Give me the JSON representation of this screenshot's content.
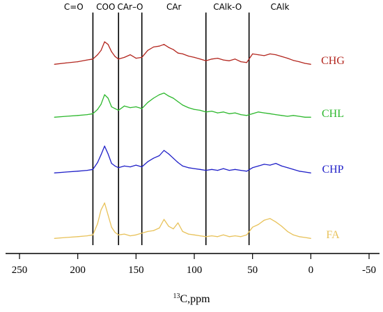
{
  "chart_data": {
    "type": "line",
    "title": "",
    "xlabel_sup": "13",
    "xlabel_main": "C,ppm",
    "xlim": [
      250,
      -50
    ],
    "x_reversed": true,
    "x_ticks": [
      250,
      200,
      150,
      100,
      50,
      0,
      -50
    ],
    "x_tick_labels": [
      "250",
      "200",
      "150",
      "100",
      "50",
      "0",
      "-50"
    ],
    "grid": false,
    "regions": [
      {
        "label": "C=O",
        "from": 220,
        "to": 187
      },
      {
        "label": "COO",
        "from": 187,
        "to": 165
      },
      {
        "label": "CAr–O",
        "from": 165,
        "to": 145
      },
      {
        "label": "CAr",
        "from": 145,
        "to": 90
      },
      {
        "label": "CAlk-O",
        "from": 90,
        "to": 53
      },
      {
        "label": "CAlk",
        "from": 53,
        "to": 0
      }
    ],
    "boundaries": [
      187,
      165,
      145,
      90,
      53
    ],
    "series": [
      {
        "name": "CHG",
        "color": "#b3261e",
        "x": [
          220,
          210,
          200,
          192,
          187,
          183,
          180,
          177,
          174,
          171,
          168,
          165,
          160,
          155,
          150,
          145,
          140,
          135,
          130,
          126,
          122,
          118,
          114,
          110,
          105,
          100,
          95,
          90,
          85,
          80,
          75,
          70,
          65,
          60,
          55,
          50,
          45,
          40,
          35,
          30,
          25,
          20,
          15,
          10,
          5,
          0
        ],
        "y": [
          6,
          9,
          12,
          16,
          18,
          28,
          38,
          58,
          52,
          35,
          24,
          18,
          22,
          28,
          20,
          22,
          38,
          46,
          48,
          52,
          45,
          40,
          32,
          30,
          25,
          22,
          18,
          14,
          18,
          20,
          16,
          14,
          18,
          12,
          10,
          30,
          28,
          26,
          30,
          28,
          24,
          20,
          15,
          12,
          8,
          6
        ]
      },
      {
        "name": "CHL",
        "color": "#2db82d",
        "x": [
          220,
          210,
          200,
          192,
          187,
          183,
          180,
          177,
          174,
          171,
          168,
          165,
          160,
          155,
          150,
          145,
          140,
          135,
          130,
          126,
          122,
          118,
          114,
          110,
          105,
          100,
          95,
          90,
          85,
          80,
          75,
          70,
          65,
          60,
          55,
          50,
          45,
          40,
          35,
          30,
          25,
          20,
          15,
          10,
          5,
          0
        ],
        "y": [
          6,
          8,
          10,
          12,
          14,
          24,
          36,
          58,
          50,
          30,
          26,
          22,
          32,
          28,
          30,
          26,
          40,
          50,
          58,
          62,
          55,
          50,
          42,
          34,
          28,
          24,
          22,
          18,
          20,
          16,
          18,
          14,
          16,
          12,
          10,
          14,
          18,
          16,
          14,
          12,
          10,
          8,
          10,
          8,
          6,
          6
        ]
      },
      {
        "name": "CHP",
        "color": "#1f1fc8",
        "x": [
          220,
          210,
          200,
          192,
          187,
          183,
          180,
          177,
          174,
          171,
          168,
          165,
          160,
          155,
          150,
          145,
          140,
          135,
          130,
          126,
          122,
          118,
          114,
          110,
          105,
          100,
          95,
          90,
          85,
          80,
          75,
          70,
          65,
          60,
          55,
          50,
          45,
          40,
          35,
          30,
          25,
          20,
          15,
          10,
          5,
          0
        ],
        "y": [
          6,
          8,
          10,
          12,
          14,
          30,
          48,
          68,
          50,
          28,
          22,
          18,
          22,
          20,
          24,
          20,
          32,
          40,
          46,
          58,
          50,
          40,
          30,
          22,
          18,
          16,
          14,
          12,
          14,
          12,
          16,
          12,
          14,
          12,
          10,
          18,
          22,
          26,
          24,
          28,
          22,
          18,
          14,
          10,
          8,
          6
        ]
      },
      {
        "name": "FA",
        "color": "#e8c25a",
        "x": [
          220,
          210,
          200,
          192,
          187,
          183,
          180,
          177,
          174,
          171,
          168,
          165,
          160,
          155,
          150,
          145,
          140,
          135,
          130,
          126,
          122,
          118,
          114,
          110,
          105,
          100,
          95,
          90,
          85,
          80,
          75,
          70,
          65,
          60,
          55,
          50,
          45,
          40,
          35,
          30,
          25,
          20,
          15,
          10,
          5,
          0
        ],
        "y": [
          6,
          8,
          10,
          12,
          14,
          40,
          72,
          88,
          60,
          32,
          20,
          14,
          16,
          12,
          14,
          18,
          22,
          24,
          30,
          50,
          34,
          28,
          42,
          22,
          16,
          14,
          12,
          10,
          12,
          10,
          14,
          10,
          12,
          10,
          14,
          32,
          38,
          48,
          52,
          44,
          34,
          22,
          14,
          10,
          8,
          6
        ]
      }
    ]
  }
}
